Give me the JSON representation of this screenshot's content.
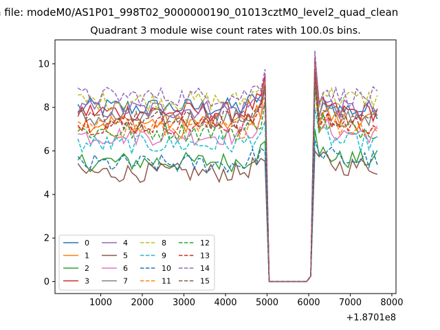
{
  "figure": {
    "suptitle": "n file: modeM0/AS1P01_998T02_9000000190_01013cztM0_level2_quad_clean",
    "title": "Quadrant 3 module wise count rates with 100.0s bins."
  },
  "chart_data": {
    "type": "line",
    "title": "Quadrant 3 module wise count rates with 100.0s bins.",
    "xlabel": "",
    "ylabel": "",
    "x_offset_label": "+1.8701e8",
    "xlim": [
      -100,
      8100
    ],
    "ylim": [
      -0.55,
      11.1
    ],
    "xticks": [
      1000,
      2000,
      3000,
      4000,
      5000,
      6000,
      7000,
      8000
    ],
    "yticks": [
      0,
      2,
      4,
      6,
      8,
      10
    ],
    "grid": false,
    "legend": {
      "location": "lower-left",
      "columns": 4
    },
    "series": [
      {
        "name": "0",
        "color": "#1f77b4",
        "dash": "solid",
        "level": 8.0,
        "post": 7.9,
        "spike": 9.4
      },
      {
        "name": "1",
        "color": "#ff7f0e",
        "dash": "solid",
        "level": 7.3,
        "post": 7.4,
        "spike": 10.2
      },
      {
        "name": "2",
        "color": "#2ca02c",
        "dash": "solid",
        "level": 5.5,
        "post": 5.6,
        "spike": 7.0
      },
      {
        "name": "3",
        "color": "#d62728",
        "dash": "solid",
        "level": 7.8,
        "post": 7.8,
        "spike": 10.3
      },
      {
        "name": "4",
        "color": "#9467bd",
        "dash": "solid",
        "level": 7.9,
        "post": 7.9,
        "spike": 10.0
      },
      {
        "name": "5",
        "color": "#8c564b",
        "dash": "solid",
        "level": 5.0,
        "post": 5.3,
        "spike": 6.0
      },
      {
        "name": "6",
        "color": "#e377c2",
        "dash": "solid",
        "level": 6.7,
        "post": 6.8,
        "spike": 9.0
      },
      {
        "name": "7",
        "color": "#7f7f7f",
        "dash": "solid",
        "level": 7.5,
        "post": 7.6,
        "spike": 9.2
      },
      {
        "name": "8",
        "color": "#bcbd22",
        "dash": "dashed",
        "level": 8.3,
        "post": 8.4,
        "spike": 9.4
      },
      {
        "name": "9",
        "color": "#17becf",
        "dash": "dashed",
        "level": 6.3,
        "post": 6.4,
        "spike": 8.0
      },
      {
        "name": "10",
        "color": "#1f77b4",
        "dash": "dashed",
        "level": 5.4,
        "post": 5.6,
        "spike": 6.5
      },
      {
        "name": "11",
        "color": "#ff7f0e",
        "dash": "dashed",
        "level": 7.0,
        "post": 7.1,
        "spike": 10.0
      },
      {
        "name": "12",
        "color": "#2ca02c",
        "dash": "dashed",
        "level": 6.9,
        "post": 7.0,
        "spike": 9.0
      },
      {
        "name": "13",
        "color": "#d62728",
        "dash": "dashed",
        "level": 7.2,
        "post": 7.2,
        "spike": 9.6
      },
      {
        "name": "14",
        "color": "#9467bd",
        "dash": "dashed",
        "level": 8.5,
        "post": 8.5,
        "spike": 10.6
      },
      {
        "name": "15",
        "color": "#8c564b",
        "dash": "dashed",
        "level": 7.4,
        "post": 7.5,
        "spike": 9.8
      }
    ],
    "gap": {
      "start": 5000,
      "end": 6000,
      "value": 0
    },
    "x_start": 450,
    "x_end": 7700,
    "bin": 100
  }
}
